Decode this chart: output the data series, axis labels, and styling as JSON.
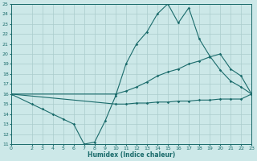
{
  "xlabel": "Humidex (Indice chaleur)",
  "background_color": "#cce8e8",
  "grid_color": "#aacccc",
  "line_color": "#1a6b6b",
  "xlim": [
    0,
    23
  ],
  "ylim": [
    11,
    25
  ],
  "xticks": [
    0,
    2,
    3,
    4,
    5,
    6,
    7,
    8,
    9,
    10,
    11,
    12,
    13,
    14,
    15,
    16,
    17,
    18,
    19,
    20,
    21,
    22,
    23
  ],
  "yticks": [
    11,
    12,
    13,
    14,
    15,
    16,
    17,
    18,
    19,
    20,
    21,
    22,
    23,
    24,
    25
  ],
  "series": [
    {
      "x": [
        0,
        2,
        3,
        4,
        5,
        6,
        7,
        8,
        9,
        10,
        11,
        12,
        13,
        14,
        15,
        16,
        17,
        18,
        19,
        20,
        21,
        22,
        23
      ],
      "y": [
        16,
        15,
        14.5,
        14.0,
        13.5,
        13.0,
        11.0,
        11.2,
        13.3,
        15.8,
        19.0,
        21.0,
        22.2,
        24.0,
        25.0,
        23.1,
        24.6,
        21.5,
        19.8,
        18.4,
        17.3,
        16.7,
        16.0
      ]
    },
    {
      "x": [
        0,
        10,
        11,
        12,
        13,
        14,
        15,
        16,
        17,
        18,
        19,
        20,
        21,
        22,
        23
      ],
      "y": [
        16,
        16,
        16.3,
        16.7,
        17.2,
        17.8,
        18.2,
        18.5,
        19.0,
        19.3,
        19.7,
        20.0,
        18.5,
        17.8,
        16.0
      ]
    },
    {
      "x": [
        0,
        10,
        11,
        12,
        13,
        14,
        15,
        16,
        17,
        18,
        19,
        20,
        21,
        22,
        23
      ],
      "y": [
        16,
        15,
        15.0,
        15.1,
        15.1,
        15.2,
        15.2,
        15.3,
        15.3,
        15.4,
        15.4,
        15.5,
        15.5,
        15.5,
        16.0
      ]
    }
  ]
}
